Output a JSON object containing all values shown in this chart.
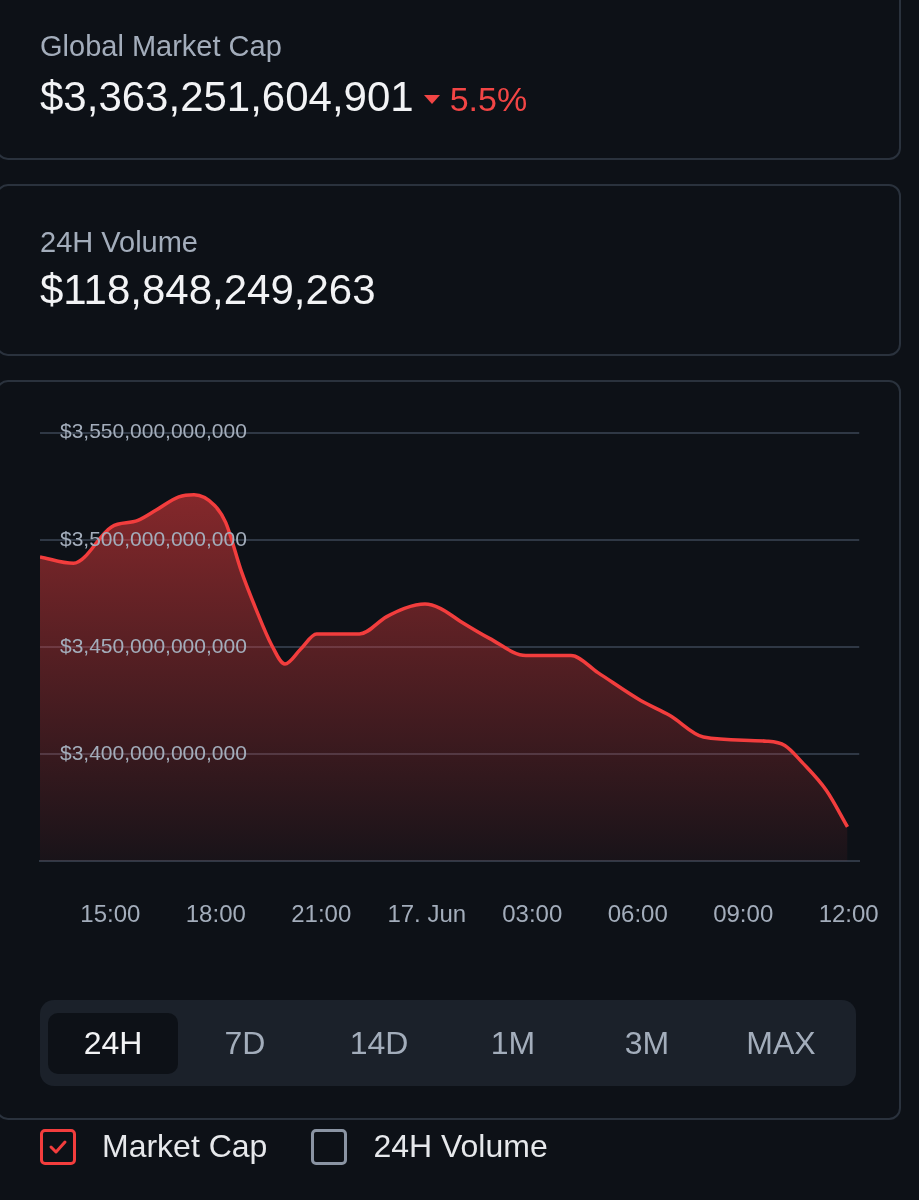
{
  "chart_data": {
    "type": "area",
    "title": "Global Market Cap",
    "subtitle": "$3,363,251,604,901",
    "annotations": [
      "5.5%",
      "24H Volume",
      "$118,848,249,263",
      "24H",
      "7D",
      "14D",
      "1M",
      "3M",
      "MAX",
      "24H Volume"
    ],
    "x": [
      "--06-16T13:00",
      "--06-16T13:57",
      "--06-16T15:02",
      "--06-16T15:47",
      "--06-16T16:19",
      "--06-16T16:57",
      "--06-16T17:23",
      "--06-16T17:58",
      "--06-16T18:17",
      "--06-16T18:44",
      "--06-16T19:08",
      "--06-16T19:35",
      "--06-16T19:58",
      "--06-16T20:25",
      "--06-16T20:52",
      "--06-16T22:05",
      "--06-16T22:51",
      "--06-16T23:22",
      "--06-16T23:57",
      "--06-17T00:23",
      "--06-17T00:57",
      "--06-17T01:47",
      "--06-17T02:49",
      "--06-17T04:06",
      "--06-17T04:52",
      "--06-17T06:05",
      "--06-17T06:55",
      "--06-17T07:52",
      "--06-17T09:40",
      "--06-17T10:11",
      "--06-17T10:41",
      "--06-17T11:22",
      "--06-17T11:58"
    ],
    "series": [
      {
        "name": "Market Cap",
        "color": "#f23d3d",
        "values": [
          3492000000000,
          3489000000000,
          3506000000000,
          3509000000000,
          3514000000000,
          3520000000000,
          3521000000000,
          3516000000000,
          3508000000000,
          3485000000000,
          3468000000000,
          3451000000000,
          3442000000000,
          3449000000000,
          3456000000000,
          3456000000000,
          3464000000000,
          3468000000000,
          3470000000000,
          3468000000000,
          3462000000000,
          3454000000000,
          3446000000000,
          3446000000000,
          3438000000000,
          3425000000000,
          3418000000000,
          3408000000000,
          3406000000000,
          3404000000000,
          3396000000000,
          3383000000000,
          3366000000000
        ]
      }
    ],
    "xlim": [
      "--06-16T13:00",
      "--06-17T12:18"
    ],
    "xticks": [
      {
        "value": "--06-16T15:00",
        "label": "15:00"
      },
      {
        "value": "--06-16T18:00",
        "label": "18:00"
      },
      {
        "value": "--06-16T21:00",
        "label": "21:00"
      },
      {
        "value": "--06-17T00:00",
        "label": "17. Jun"
      },
      {
        "value": "--06-17T03:00",
        "label": "03:00"
      },
      {
        "value": "--06-17T06:00",
        "label": "06:00"
      },
      {
        "value": "--06-17T09:00",
        "label": "09:00"
      },
      {
        "value": "--06-17T12:00",
        "label": "12:00"
      }
    ],
    "ylim": [
      3350000000000,
      3550000000000
    ],
    "yticks": [
      {
        "value": 3400000000000,
        "label": "$3,400,000,000,000"
      },
      {
        "value": 3450000000000,
        "label": "$3,450,000,000,000"
      },
      {
        "value": 3500000000000,
        "label": "$3,500,000,000,000"
      },
      {
        "value": 3550000000000,
        "label": "$3,550,000,000,000"
      }
    ],
    "grid": "y",
    "legend": "bottom",
    "marker": "none",
    "line_style": "solid"
  }
}
